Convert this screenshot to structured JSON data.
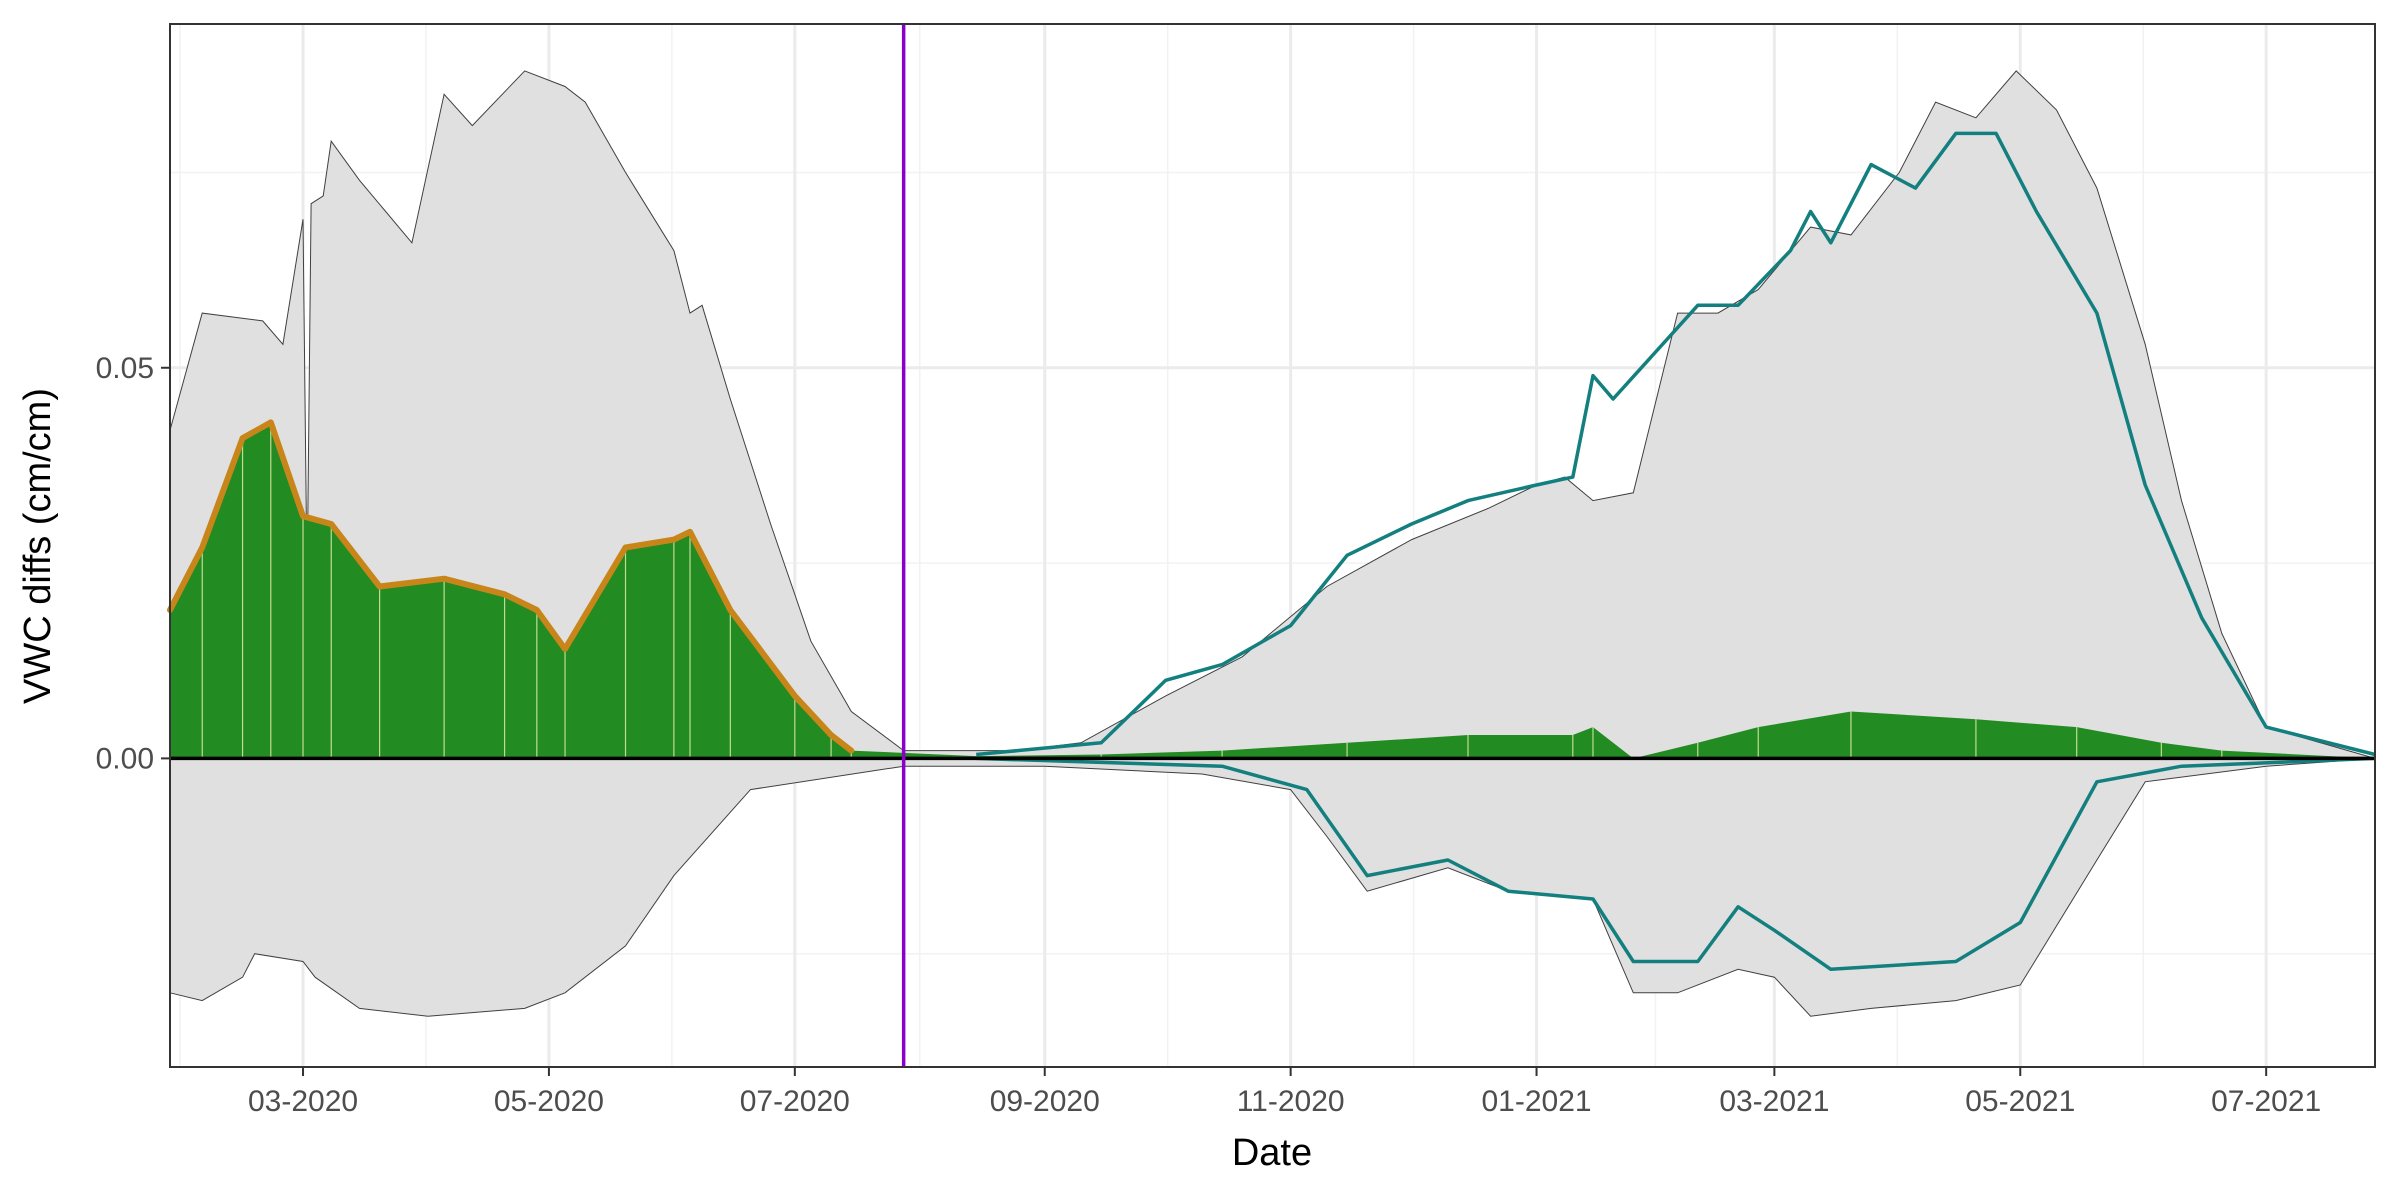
{
  "chart_data": {
    "type": "area",
    "xlabel": "Date",
    "ylabel": "VWC diffs (cm/cm)",
    "x_type": "date",
    "x_tick_labels": [
      {
        "date": "2020-03-01",
        "label": "03-2020"
      },
      {
        "date": "2020-05-01",
        "label": "05-2020"
      },
      {
        "date": "2020-07-01",
        "label": "07-2020"
      },
      {
        "date": "2020-09-01",
        "label": "09-2020"
      },
      {
        "date": "2020-11-01",
        "label": "11-2020"
      },
      {
        "date": "2021-01-01",
        "label": "01-2021"
      },
      {
        "date": "2021-03-01",
        "label": "03-2021"
      },
      {
        "date": "2021-05-01",
        "label": "05-2021"
      },
      {
        "date": "2021-07-01",
        "label": "07-2021"
      }
    ],
    "y_ticks": [
      0.0,
      0.05
    ],
    "y_tick_labels": [
      "0.00",
      "0.05"
    ],
    "xlim": [
      "2020-01-28",
      "2021-07-28"
    ],
    "ylim": [
      -0.0395,
      0.094
    ],
    "grid": true,
    "vline": {
      "date": "2020-07-28",
      "color": "#8B00C9"
    },
    "colors": {
      "band_fill": "#e0e0e0",
      "band_edge": "#404040",
      "bars": "#228B22",
      "bar_highlight": "#e8f0b0",
      "line_2020": "#C8861A",
      "line_2021": "#137F7F",
      "zero_line": "#000000"
    },
    "series": [
      {
        "role": "band",
        "upper": [
          [
            "2020-01-28",
            0.042
          ],
          [
            "2020-02-05",
            0.057
          ],
          [
            "2020-02-20",
            0.056
          ],
          [
            "2020-02-25",
            0.053
          ],
          [
            "2020-03-01",
            0.069
          ],
          [
            "2020-03-02",
            0.022
          ],
          [
            "2020-03-03",
            0.071
          ],
          [
            "2020-03-06",
            0.072
          ],
          [
            "2020-03-08",
            0.079
          ],
          [
            "2020-03-15",
            0.074
          ],
          [
            "2020-03-28",
            0.066
          ],
          [
            "2020-04-05",
            0.085
          ],
          [
            "2020-04-12",
            0.081
          ],
          [
            "2020-04-25",
            0.088
          ],
          [
            "2020-05-05",
            0.086
          ],
          [
            "2020-05-10",
            0.084
          ],
          [
            "2020-05-20",
            0.075
          ],
          [
            "2020-06-01",
            0.065
          ],
          [
            "2020-06-05",
            0.057
          ],
          [
            "2020-06-08",
            0.058
          ],
          [
            "2020-06-15",
            0.046
          ],
          [
            "2020-06-25",
            0.03
          ],
          [
            "2020-07-05",
            0.015
          ],
          [
            "2020-07-15",
            0.006
          ],
          [
            "2020-07-28",
            0.001
          ],
          [
            "2020-08-25",
            0.001
          ],
          [
            "2020-09-10",
            0.002
          ],
          [
            "2020-10-01",
            0.008
          ],
          [
            "2020-10-20",
            0.013
          ],
          [
            "2020-11-10",
            0.022
          ],
          [
            "2020-12-01",
            0.028
          ],
          [
            "2020-12-20",
            0.032
          ],
          [
            "2021-01-01",
            0.035
          ],
          [
            "2021-01-08",
            0.036
          ],
          [
            "2021-01-15",
            0.033
          ],
          [
            "2021-01-25",
            0.034
          ],
          [
            "2021-02-05",
            0.057
          ],
          [
            "2021-02-15",
            0.057
          ],
          [
            "2021-02-25",
            0.06
          ],
          [
            "2021-03-10",
            0.068
          ],
          [
            "2021-03-20",
            0.067
          ],
          [
            "2021-04-01",
            0.075
          ],
          [
            "2021-04-10",
            0.084
          ],
          [
            "2021-04-20",
            0.082
          ],
          [
            "2021-04-30",
            0.088
          ],
          [
            "2021-05-10",
            0.083
          ],
          [
            "2021-05-20",
            0.073
          ],
          [
            "2021-06-01",
            0.053
          ],
          [
            "2021-06-10",
            0.033
          ],
          [
            "2021-06-20",
            0.016
          ],
          [
            "2021-07-01",
            0.004
          ],
          [
            "2021-07-28",
            0.0
          ]
        ],
        "lower": [
          [
            "2020-01-28",
            -0.03
          ],
          [
            "2020-02-05",
            -0.031
          ],
          [
            "2020-02-15",
            -0.028
          ],
          [
            "2020-02-18",
            -0.025
          ],
          [
            "2020-03-01",
            -0.026
          ],
          [
            "2020-03-04",
            -0.028
          ],
          [
            "2020-03-15",
            -0.032
          ],
          [
            "2020-04-01",
            -0.033
          ],
          [
            "2020-04-25",
            -0.032
          ],
          [
            "2020-05-05",
            -0.03
          ],
          [
            "2020-05-20",
            -0.024
          ],
          [
            "2020-06-01",
            -0.015
          ],
          [
            "2020-06-20",
            -0.004
          ],
          [
            "2020-07-28",
            -0.001
          ],
          [
            "2020-09-01",
            -0.001
          ],
          [
            "2020-10-10",
            -0.002
          ],
          [
            "2020-11-01",
            -0.004
          ],
          [
            "2020-11-10",
            -0.01
          ],
          [
            "2020-11-20",
            -0.017
          ],
          [
            "2020-12-10",
            -0.014
          ],
          [
            "2020-12-25",
            -0.017
          ],
          [
            "2021-01-15",
            -0.018
          ],
          [
            "2021-01-25",
            -0.03
          ],
          [
            "2021-02-05",
            -0.03
          ],
          [
            "2021-02-20",
            -0.027
          ],
          [
            "2021-03-01",
            -0.028
          ],
          [
            "2021-03-10",
            -0.033
          ],
          [
            "2021-03-25",
            -0.032
          ],
          [
            "2021-04-15",
            -0.031
          ],
          [
            "2021-05-01",
            -0.029
          ],
          [
            "2021-05-20",
            -0.013
          ],
          [
            "2021-06-01",
            -0.003
          ],
          [
            "2021-07-01",
            -0.001
          ],
          [
            "2021-07-28",
            0.0
          ]
        ]
      },
      {
        "role": "bars",
        "values": [
          [
            "2020-01-28",
            0.019
          ],
          [
            "2020-02-05",
            0.027
          ],
          [
            "2020-02-15",
            0.041
          ],
          [
            "2020-02-22",
            0.043
          ],
          [
            "2020-03-01",
            0.031
          ],
          [
            "2020-03-08",
            0.03
          ],
          [
            "2020-03-20",
            0.022
          ],
          [
            "2020-04-05",
            0.023
          ],
          [
            "2020-04-20",
            0.021
          ],
          [
            "2020-04-28",
            0.019
          ],
          [
            "2020-05-05",
            0.014
          ],
          [
            "2020-05-20",
            0.027
          ],
          [
            "2020-06-01",
            0.028
          ],
          [
            "2020-06-05",
            0.029
          ],
          [
            "2020-06-15",
            0.019
          ],
          [
            "2020-07-01",
            0.008
          ],
          [
            "2020-07-10",
            0.003
          ],
          [
            "2020-07-15",
            0.001
          ],
          [
            "2020-08-15",
            0.0003
          ],
          [
            "2020-09-15",
            0.0005
          ],
          [
            "2020-10-15",
            0.001
          ],
          [
            "2020-11-15",
            0.002
          ],
          [
            "2020-12-15",
            0.003
          ],
          [
            "2021-01-10",
            0.003
          ],
          [
            "2021-01-15",
            0.004
          ],
          [
            "2021-01-25",
            0.0
          ],
          [
            "2021-02-10",
            0.002
          ],
          [
            "2021-02-25",
            0.004
          ],
          [
            "2021-03-20",
            0.006
          ],
          [
            "2021-04-20",
            0.005
          ],
          [
            "2021-05-15",
            0.004
          ],
          [
            "2021-06-05",
            0.002
          ],
          [
            "2021-06-20",
            0.001
          ],
          [
            "2021-07-28",
            0.0
          ]
        ]
      },
      {
        "role": "line_2020",
        "values": [
          [
            "2020-01-28",
            0.019
          ],
          [
            "2020-02-05",
            0.027
          ],
          [
            "2020-02-15",
            0.041
          ],
          [
            "2020-02-22",
            0.043
          ],
          [
            "2020-03-01",
            0.031
          ],
          [
            "2020-03-08",
            0.03
          ],
          [
            "2020-03-20",
            0.022
          ],
          [
            "2020-04-05",
            0.023
          ],
          [
            "2020-04-20",
            0.021
          ],
          [
            "2020-04-28",
            0.019
          ],
          [
            "2020-05-05",
            0.014
          ],
          [
            "2020-05-20",
            0.027
          ],
          [
            "2020-06-01",
            0.028
          ],
          [
            "2020-06-05",
            0.029
          ],
          [
            "2020-06-15",
            0.019
          ],
          [
            "2020-07-01",
            0.008
          ],
          [
            "2020-07-10",
            0.003
          ],
          [
            "2020-07-15",
            0.001
          ]
        ]
      },
      {
        "role": "line_2021_upper",
        "values": [
          [
            "2020-08-15",
            0.0005
          ],
          [
            "2020-09-15",
            0.002
          ],
          [
            "2020-10-01",
            0.01
          ],
          [
            "2020-10-15",
            0.012
          ],
          [
            "2020-11-01",
            0.017
          ],
          [
            "2020-11-15",
            0.026
          ],
          [
            "2020-12-01",
            0.03
          ],
          [
            "2020-12-15",
            0.033
          ],
          [
            "2021-01-01",
            0.035
          ],
          [
            "2021-01-10",
            0.036
          ],
          [
            "2021-01-15",
            0.049
          ],
          [
            "2021-01-20",
            0.046
          ],
          [
            "2021-02-10",
            0.058
          ],
          [
            "2021-02-20",
            0.058
          ],
          [
            "2021-03-05",
            0.065
          ],
          [
            "2021-03-10",
            0.07
          ],
          [
            "2021-03-15",
            0.066
          ],
          [
            "2021-03-25",
            0.076
          ],
          [
            "2021-04-05",
            0.073
          ],
          [
            "2021-04-15",
            0.08
          ],
          [
            "2021-04-25",
            0.08
          ],
          [
            "2021-05-05",
            0.07
          ],
          [
            "2021-05-20",
            0.057
          ],
          [
            "2021-06-01",
            0.035
          ],
          [
            "2021-06-15",
            0.018
          ],
          [
            "2021-07-01",
            0.004
          ],
          [
            "2021-07-28",
            0.0005
          ]
        ]
      },
      {
        "role": "line_2021_lower",
        "values": [
          [
            "2020-08-15",
            0.0
          ],
          [
            "2020-10-15",
            -0.001
          ],
          [
            "2020-11-05",
            -0.004
          ],
          [
            "2020-11-20",
            -0.015
          ],
          [
            "2020-12-10",
            -0.013
          ],
          [
            "2020-12-25",
            -0.017
          ],
          [
            "2021-01-15",
            -0.018
          ],
          [
            "2021-01-25",
            -0.026
          ],
          [
            "2021-02-10",
            -0.026
          ],
          [
            "2021-02-20",
            -0.019
          ],
          [
            "2021-03-01",
            -0.022
          ],
          [
            "2021-03-15",
            -0.027
          ],
          [
            "2021-04-15",
            -0.026
          ],
          [
            "2021-05-01",
            -0.021
          ],
          [
            "2021-05-20",
            -0.003
          ],
          [
            "2021-06-10",
            -0.001
          ],
          [
            "2021-07-28",
            0.0
          ]
        ]
      }
    ]
  }
}
